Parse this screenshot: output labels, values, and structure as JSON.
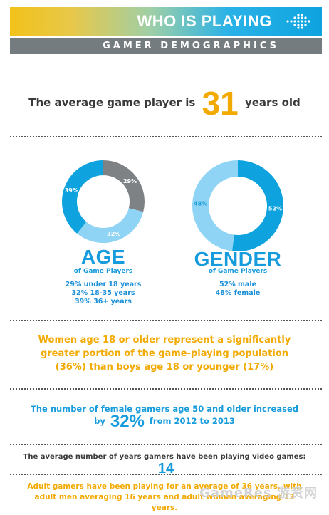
{
  "header": {
    "title": "WHO IS PLAYING",
    "subtitle": "GAMER DEMOGRAPHICS"
  },
  "average_age": {
    "prefix": "The average game player is",
    "value": "31",
    "suffix": "years old"
  },
  "colors": {
    "accent_orange": "#f2a900",
    "accent_blue": "#169bdc",
    "mid_blue": "#0ea3df",
    "light_blue": "#8fd4f4",
    "gray": "#7f8285"
  },
  "chart_data": [
    {
      "type": "pie",
      "title": "AGE",
      "subtitle": "of Game Players",
      "categories": [
        "under 18 years",
        "18-35 years",
        "36+ years"
      ],
      "values": [
        29,
        32,
        39
      ],
      "slice_labels": [
        "29%",
        "32%",
        "39%"
      ],
      "legend": [
        "29% under 18 years",
        "32% 18-35 years",
        "39% 36+ years"
      ]
    },
    {
      "type": "pie",
      "title": "GENDER",
      "subtitle": "of Game Players",
      "categories": [
        "male",
        "female"
      ],
      "values": [
        52,
        48
      ],
      "slice_labels": [
        "52%",
        "48%"
      ],
      "legend": [
        "52% male",
        "48% female"
      ]
    }
  ],
  "facts": {
    "women_line1": "Women age 18 or older represent a significantly",
    "women_line2": "greater portion of the game-playing population",
    "women_line3": "(36%) than boys age 18 or younger (17%)",
    "female50_line1": "The number of female gamers age 50 and older increased",
    "female50_by": "by",
    "female50_value": "32%",
    "female50_tail": "from 2012 to 2013",
    "years_text": "The average number of years gamers have been playing video games:",
    "years_value": "14",
    "adult_line1": "Adult gamers have been playing for an average of 36 years, with",
    "adult_line2": "adult men averaging 16 years and adult women averaging 13 years."
  },
  "watermark": "GameRes 游资网"
}
